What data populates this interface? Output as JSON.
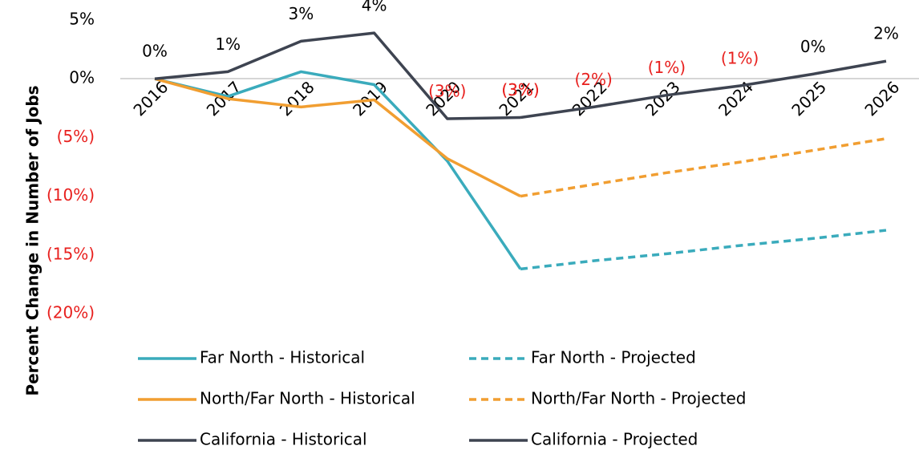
{
  "chart_data": {
    "type": "line",
    "y_label": "Percent Change in  Number of Jobs",
    "categories": [
      "2016",
      "2017",
      "2018",
      "2019",
      "2020",
      "2021",
      "2022",
      "2023",
      "2024",
      "2025",
      "2026"
    ],
    "ylim": [
      -20,
      5
    ],
    "yticks": [
      {
        "value": 5,
        "label": "5%"
      },
      {
        "value": 0,
        "label": "0%"
      },
      {
        "value": -5,
        "label": "(5%)"
      },
      {
        "value": -10,
        "label": "(10%)"
      },
      {
        "value": -15,
        "label": "(15%)"
      },
      {
        "value": -20,
        "label": "(20%)"
      }
    ],
    "negative_color": "#e8201e",
    "series": [
      {
        "name": "Far North - Historical",
        "color": "#3aabbc",
        "dashed": false,
        "values": [
          0,
          -1.5,
          0.6,
          -0.5,
          -7,
          -16.2,
          null,
          null,
          null,
          null,
          null
        ]
      },
      {
        "name": "Far North - Projected",
        "color": "#3aabbc",
        "dashed": true,
        "values": [
          null,
          null,
          null,
          null,
          null,
          -16.2,
          -15.5,
          -14.9,
          -14.2,
          -13.6,
          -12.9
        ]
      },
      {
        "name": "North/Far North - Historical",
        "color": "#f19e31",
        "dashed": false,
        "values": [
          0,
          -1.7,
          -2.4,
          -1.8,
          -6.8,
          -10.0,
          null,
          null,
          null,
          null,
          null
        ]
      },
      {
        "name": "North/Far North - Projected",
        "color": "#f19e31",
        "dashed": true,
        "values": [
          null,
          null,
          null,
          null,
          null,
          -10.0,
          -9.0,
          -8.0,
          -7.1,
          -6.1,
          -5.1
        ]
      },
      {
        "name": "California - Historical",
        "color": "#3e4451",
        "dashed": false,
        "values": [
          0,
          0.6,
          3.2,
          3.9,
          -3.4,
          -3.3,
          null,
          null,
          null,
          null,
          null
        ],
        "value_labels": [
          "0%",
          "1%",
          "3%",
          "4%",
          "(3%)",
          "(3%)",
          null,
          null,
          null,
          null,
          null
        ]
      },
      {
        "name": "California - Projected",
        "color": "#3e4451",
        "dashed": false,
        "values": [
          null,
          null,
          null,
          null,
          null,
          -3.3,
          -2.4,
          -1.4,
          -0.6,
          0.4,
          1.5
        ],
        "value_labels": [
          null,
          null,
          null,
          null,
          null,
          "(3%)",
          "(2%)",
          "(1%)",
          "(1%)",
          "0%",
          "2%"
        ]
      }
    ]
  }
}
